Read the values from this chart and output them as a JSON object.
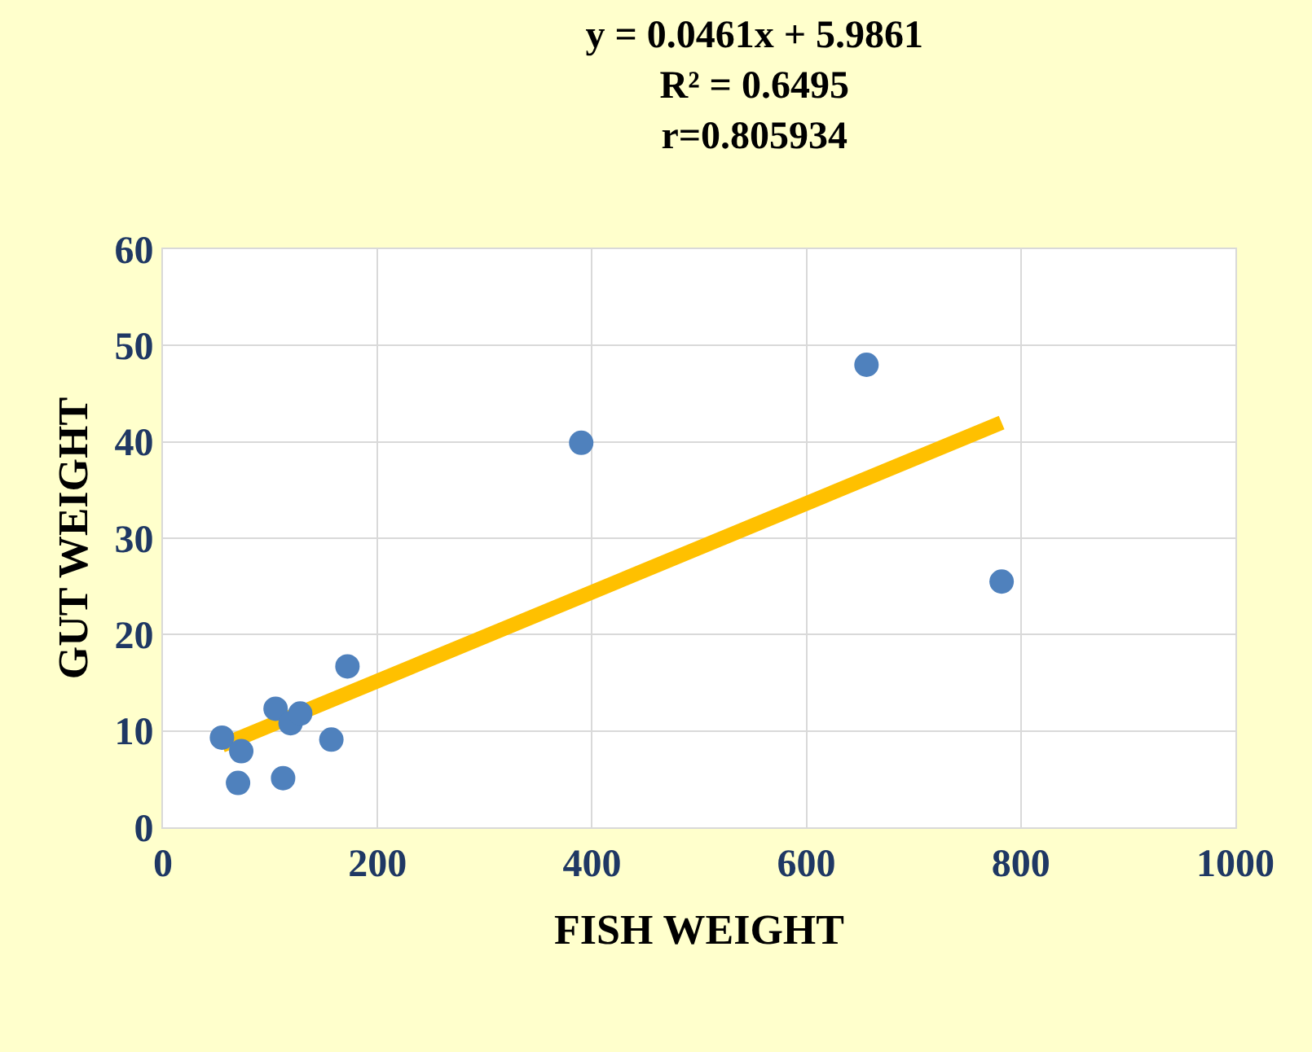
{
  "chart_data": {
    "type": "scatter",
    "title": "y = 0.0461x + 5.9861\nR² = 0.6495\nr=0.805934",
    "xlabel": "FISH WEIGHT",
    "ylabel": "GUT WEIGHT",
    "xlim": [
      0,
      1000
    ],
    "xticks": [
      0,
      200,
      400,
      600,
      800,
      1000
    ],
    "ylim": [
      0,
      60
    ],
    "yticks": [
      0,
      10,
      20,
      30,
      40,
      50,
      60
    ],
    "grid": true,
    "marker": "circle",
    "series": [
      {
        "type": "line",
        "marker": "none",
        "color": "#ffc000",
        "x": [
          55,
          782
        ],
        "values": [
          8.5,
          42.0
        ]
      },
      {
        "color": "#4f81bd",
        "x": [
          55,
          70,
          73,
          105,
          112,
          119,
          128,
          157,
          172,
          390,
          656,
          782
        ],
        "values": [
          9.3,
          4.6,
          7.9,
          12.3,
          5.1,
          10.8,
          11.8,
          9.1,
          16.7,
          39.9,
          48.0,
          25.5
        ]
      }
    ]
  }
}
